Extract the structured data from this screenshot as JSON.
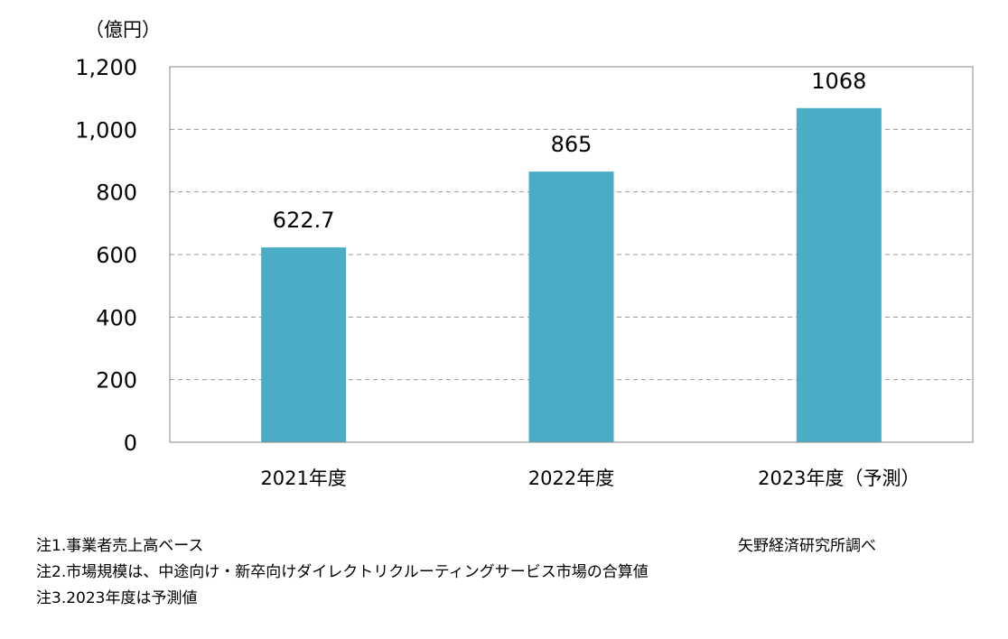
{
  "chart_data": {
    "type": "bar",
    "unit_label": "（億円）",
    "categories": [
      "2021年度",
      "2022年度",
      "2023年度（予測）"
    ],
    "values": [
      622.7,
      865,
      1068
    ],
    "data_labels": [
      "622.7",
      "865",
      "1068"
    ],
    "ylim": [
      0,
      1200
    ],
    "yticks": [
      0,
      200,
      400,
      600,
      800,
      1000,
      1200
    ],
    "ytick_labels": [
      "0",
      "200",
      "400",
      "600",
      "800",
      "1,000",
      "1,200"
    ],
    "bar_color": "#4BACC6",
    "grid": "dashed horizontal"
  },
  "notes": [
    "注1.事業者売上高ベース",
    "注2.市場規模は、中途向け・新卒向けダイレクトリクルーティングサービス市場の合算値",
    "注3.2023年度は予測値"
  ],
  "source": "矢野経済研究所調べ"
}
